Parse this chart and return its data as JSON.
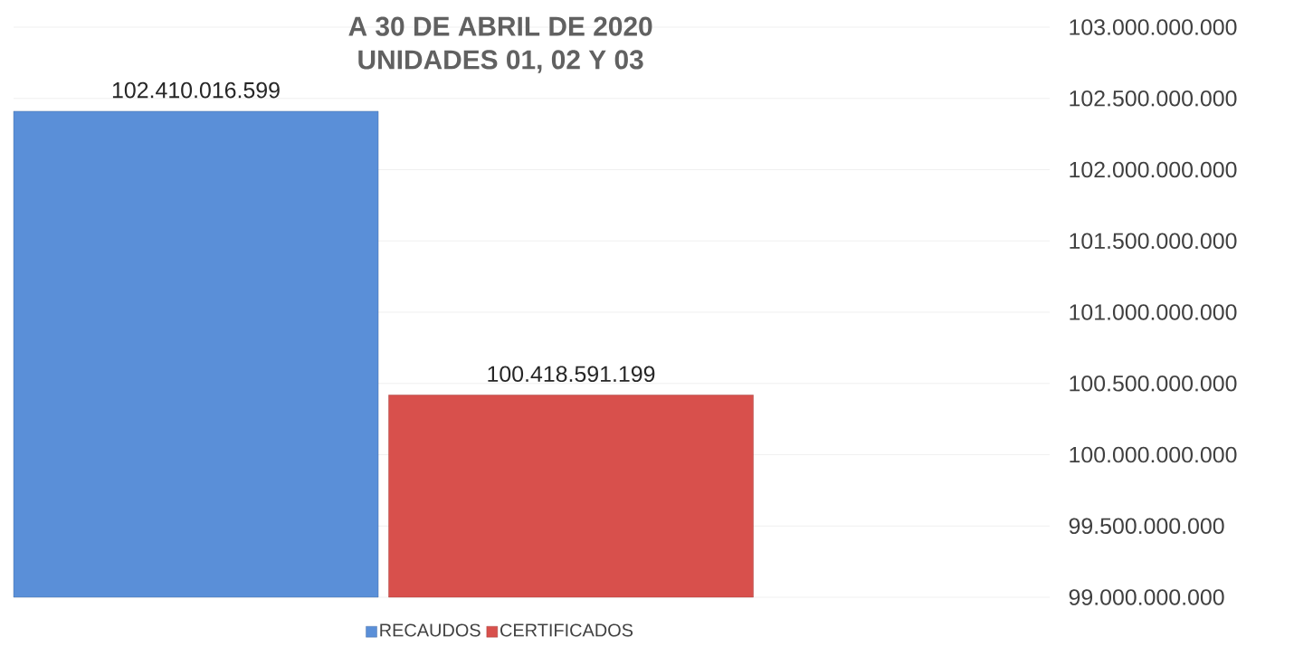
{
  "chart_data": {
    "type": "bar",
    "title": "A 30 DE ABRIL DE 2020\nUNIDADES 01, 02 Y 03",
    "categories": [
      null
    ],
    "series": [
      {
        "name": "RECAUDOS",
        "color": "#5a8fd8",
        "values": [
          102410016599
        ],
        "value_labels": [
          "102.410.016.599"
        ]
      },
      {
        "name": "CERTIFICADOS",
        "color": "#d8504c",
        "values": [
          100418591199
        ],
        "value_labels": [
          "100.418.591.199"
        ]
      }
    ],
    "ylim": [
      99000000000,
      103000000000
    ],
    "yticks": [
      {
        "value": 99000000000,
        "label": "99.000.000.000"
      },
      {
        "value": 99500000000,
        "label": "99.500.000.000"
      },
      {
        "value": 100000000000,
        "label": "100.000.000.000"
      },
      {
        "value": 100500000000,
        "label": "100.500.000.000"
      },
      {
        "value": 101000000000,
        "label": "101.000.000.000"
      },
      {
        "value": 101500000000,
        "label": "101.500.000.000"
      },
      {
        "value": 102000000000,
        "label": "102.000.000.000"
      },
      {
        "value": 102500000000,
        "label": "102.500.000.000"
      },
      {
        "value": 103000000000,
        "label": "103.000.000.000"
      }
    ],
    "grid": "y",
    "legend": "bottom"
  }
}
